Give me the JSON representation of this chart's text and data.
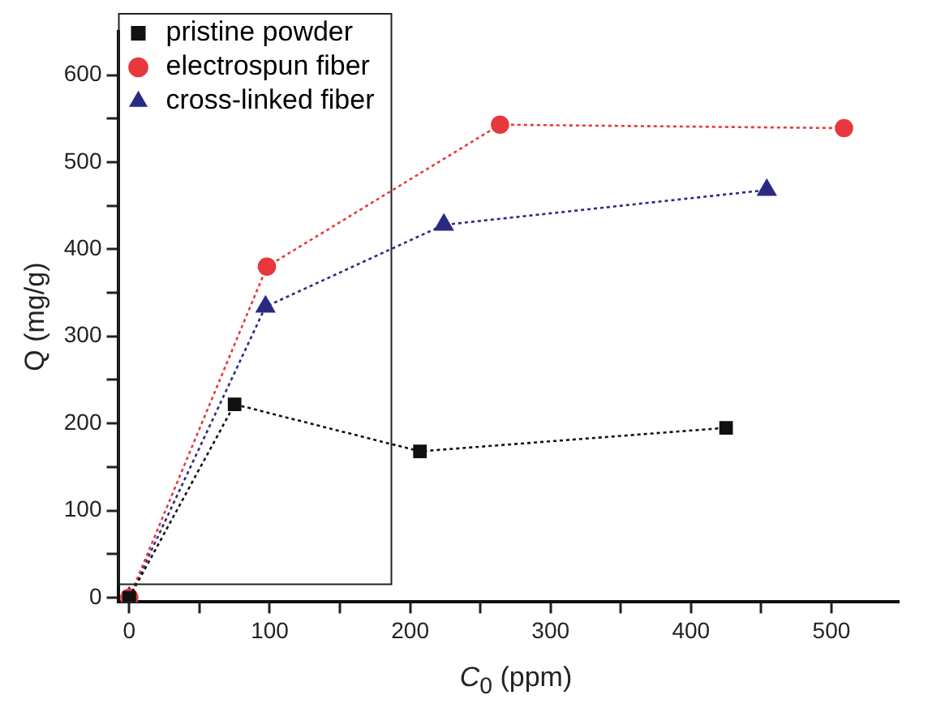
{
  "chart_data": {
    "type": "line",
    "xlabel": "C$_{0}$ (ppm)",
    "ylabel": "Q (mg/g)",
    "xlim": [
      -8,
      548
    ],
    "ylim": [
      -5,
      650
    ],
    "xticks": [
      0,
      {
        "value": 50,
        "label": null
      },
      100,
      {
        "value": 150,
        "label": null
      },
      200,
      {
        "value": 250,
        "label": null
      },
      300,
      {
        "value": 350,
        "label": null
      },
      400,
      {
        "value": 450,
        "label": null
      },
      500
    ],
    "yticks": [
      0,
      {
        "value": 50,
        "label": null
      },
      100,
      {
        "value": 150,
        "label": null
      },
      200,
      {
        "value": 250,
        "label": null
      },
      300,
      {
        "value": 350,
        "label": null
      },
      400,
      {
        "value": 450,
        "label": null
      },
      500,
      {
        "value": 550,
        "label": null
      },
      600
    ],
    "grid": false,
    "legend": "top left",
    "line_style": "dotted",
    "series": [
      {
        "name": "pristine powder",
        "color": "#111111",
        "marker": "square",
        "x": [
          0,
          75,
          207,
          425
        ],
        "values": [
          0,
          222,
          168,
          195
        ]
      },
      {
        "name": "electrospun fiber",
        "color": "#e8383d",
        "marker": "circle",
        "x": [
          0,
          98,
          264,
          509
        ],
        "values": [
          0,
          380,
          543,
          539
        ]
      },
      {
        "name": "cross-linked fiber",
        "color": "#2b2a82",
        "marker": "triangle",
        "x": [
          0,
          97,
          224,
          454
        ],
        "values": [
          0,
          334,
          428,
          468
        ]
      }
    ]
  }
}
